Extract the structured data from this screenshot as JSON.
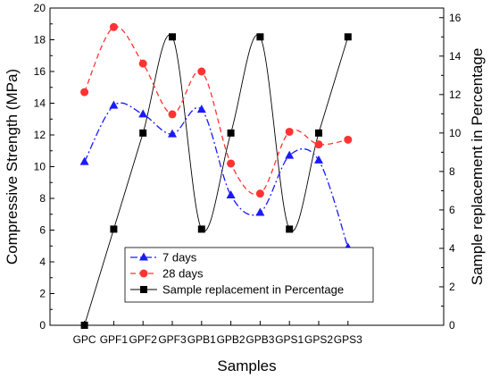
{
  "chart_data": {
    "type": "line",
    "title": "",
    "xlabel": "Samples",
    "ylabel": "Compressive Strength (MPa)",
    "y2label": "Sample replacement in Percentage",
    "categories": [
      "GPC",
      "GPF1",
      "GPF2",
      "GPF3",
      "GPB1",
      "GPB2",
      "GPB3",
      "GPS1",
      "GPS2",
      "GPS3"
    ],
    "ylim": [
      0,
      20
    ],
    "y2lim": [
      0,
      16.5
    ],
    "yticks": [
      0,
      2,
      4,
      6,
      8,
      10,
      12,
      14,
      16,
      18,
      20
    ],
    "y2ticks": [
      0,
      2,
      4,
      6,
      8,
      10,
      12,
      14,
      16
    ],
    "grid": false,
    "legend_position": "bottom-center",
    "series": [
      {
        "name": "7 days",
        "axis": "left",
        "color": "#1a1aff",
        "marker": "triangle",
        "dash": "dash-dot",
        "values": [
          10.3,
          13.85,
          13.3,
          12.05,
          13.6,
          8.2,
          7.1,
          10.7,
          10.4,
          4.9
        ]
      },
      {
        "name": "28 days",
        "axis": "left",
        "color": "#ff3333",
        "marker": "circle",
        "dash": "dashed",
        "values": [
          14.7,
          18.8,
          16.5,
          13.3,
          16.0,
          10.2,
          8.3,
          12.2,
          11.4,
          11.7
        ]
      },
      {
        "name": "Sample replacement in Percentage",
        "axis": "right",
        "color": "#000000",
        "marker": "square",
        "dash": "solid",
        "values": [
          0,
          5,
          10,
          15,
          5,
          10,
          15,
          5,
          10,
          15
        ]
      }
    ]
  }
}
